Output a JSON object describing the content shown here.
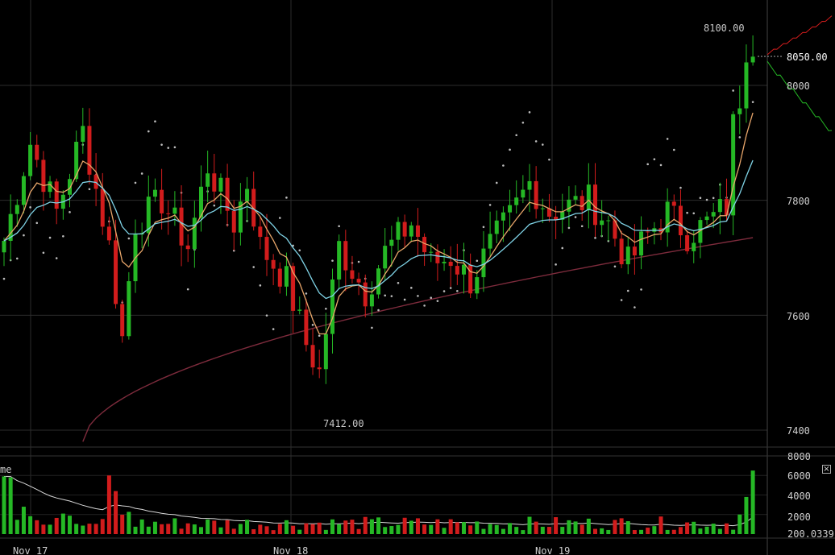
{
  "chart_data": {
    "type": "candlestick",
    "price_axis": {
      "ticks": [
        7400,
        7600,
        7800,
        8000
      ],
      "range": [
        7380,
        8140
      ]
    },
    "volume_axis": {
      "ticks": [
        2000,
        4000,
        6000,
        8000
      ],
      "range": [
        0,
        8000
      ]
    },
    "x_labels": [
      "Nov 17",
      "Nov 18",
      "Nov 19"
    ],
    "annotations": {
      "high": "8100.00",
      "low": "7412.00",
      "current": "8050.00"
    },
    "volume_panel_label": "me",
    "volume_current": "200.0339",
    "candle_count": 115,
    "ema_fast": {
      "from": 7680,
      "to": 7905
    },
    "ema_slow": {
      "from": 7630,
      "to": 7842
    },
    "sma_long": {
      "from": 7380,
      "to": 7735
    },
    "colors": {
      "up": "#25b825",
      "down": "#d21c1c",
      "ema_fast": "#e8a66a",
      "ema_slow": "#7fd3e6",
      "sma_long": "#7d2b3c",
      "sar": "#bdbdbd",
      "grid": "#2c2c2c"
    }
  },
  "ui": {
    "close_icon": "×"
  }
}
